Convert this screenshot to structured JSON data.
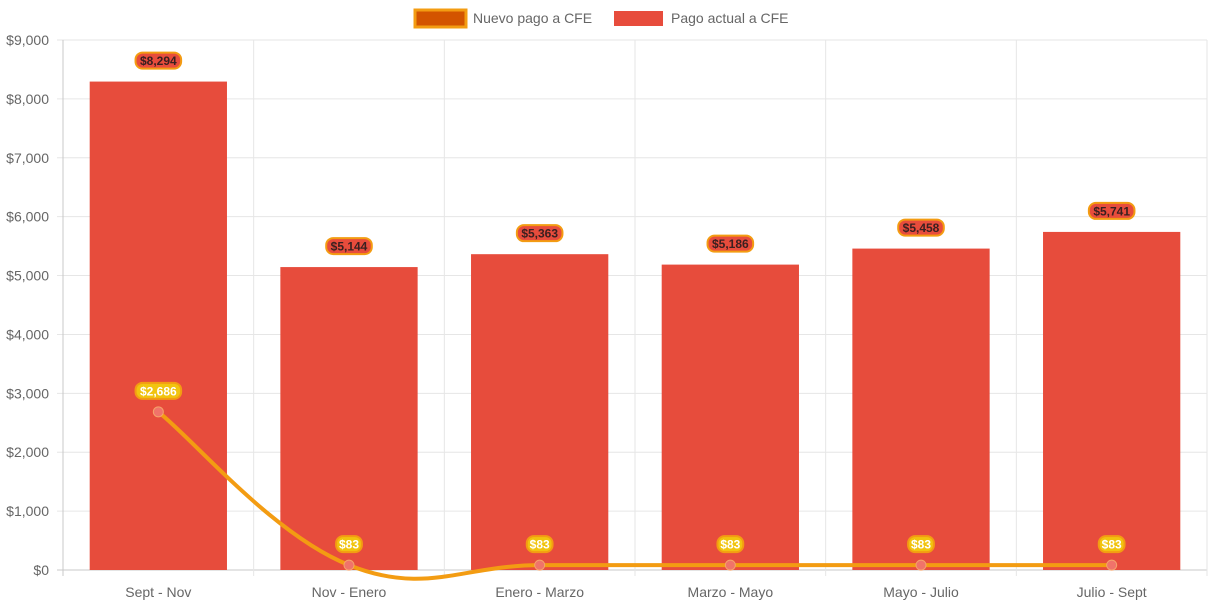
{
  "chart_data": {
    "type": "bar",
    "categories": [
      "Sept - Nov",
      "Nov - Enero",
      "Enero - Marzo",
      "Marzo - Mayo",
      "Mayo - Julio",
      "Julio - Sept"
    ],
    "series": [
      {
        "name": "Nuevo pago a CFE",
        "type": "line",
        "color": "#f39c12",
        "values": [
          2686,
          83,
          83,
          83,
          83,
          83
        ],
        "labels": [
          "$2,686",
          "$83",
          "$83",
          "$83",
          "$83",
          "$83"
        ]
      },
      {
        "name": "Pago actual a CFE",
        "type": "bar",
        "color": "#e74c3c",
        "values": [
          8294,
          5144,
          5363,
          5186,
          5458,
          5741
        ],
        "labels": [
          "$8,294",
          "$5,144",
          "$5,363",
          "$5,186",
          "$5,458",
          "$5,741"
        ]
      }
    ],
    "y_ticks": [
      "$0",
      "$1,000",
      "$2,000",
      "$3,000",
      "$4,000",
      "$5,000",
      "$6,000",
      "$7,000",
      "$8,000",
      "$9,000"
    ],
    "ylim": [
      0,
      9000
    ],
    "grid": true,
    "legend": "top-center",
    "title": "",
    "xlabel": "",
    "ylabel": ""
  }
}
